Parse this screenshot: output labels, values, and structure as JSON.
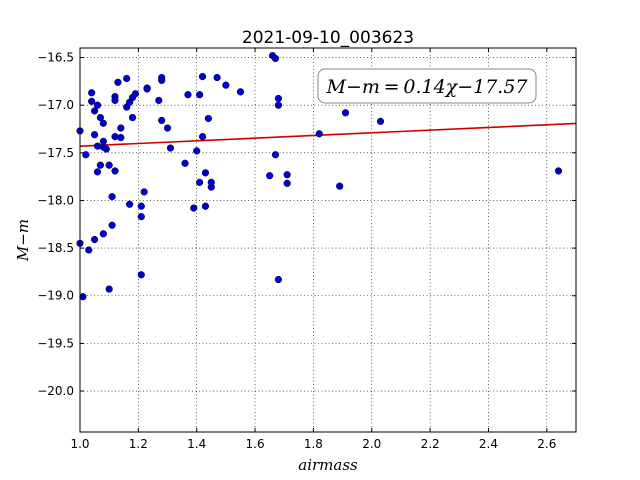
{
  "chart_data": {
    "type": "scatter",
    "title": "2021-09-10_003623",
    "xlabel": "airmass",
    "ylabel": "M−m",
    "xlim": [
      1.0,
      2.7
    ],
    "ylim": [
      -16.4,
      -20.43
    ],
    "y_inverted": true,
    "grid": true,
    "xticks": [
      1.0,
      1.2,
      1.4,
      1.6,
      1.8,
      2.0,
      2.2,
      2.4,
      2.6
    ],
    "xtick_labels": [
      "1.0",
      "1.2",
      "1.4",
      "1.6",
      "1.8",
      "2.0",
      "2.2",
      "2.4",
      "2.6"
    ],
    "yticks": [
      -16.5,
      -17.0,
      -17.5,
      -18.0,
      -18.5,
      -19.0,
      -19.5,
      -20.0
    ],
    "ytick_labels": [
      "−16.5",
      "−17.0",
      "−17.5",
      "−18.0",
      "−18.5",
      "−19.0",
      "−19.5",
      "−20.0"
    ],
    "fit": {
      "slope": 0.14,
      "intercept": -17.57,
      "color": "#cc0000"
    },
    "annotation": "M−m = 0.14χ−17.57",
    "point_color": "#0000cc",
    "points": [
      [
        1.0,
        -17.27
      ],
      [
        1.0,
        -18.45
      ],
      [
        1.01,
        -19.01
      ],
      [
        1.02,
        -17.52
      ],
      [
        1.03,
        -18.52
      ],
      [
        1.04,
        -16.96
      ],
      [
        1.04,
        -16.87
      ],
      [
        1.05,
        -17.06
      ],
      [
        1.05,
        -17.31
      ],
      [
        1.05,
        -18.41
      ],
      [
        1.06,
        -17.0
      ],
      [
        1.06,
        -17.43
      ],
      [
        1.06,
        -17.7
      ],
      [
        1.07,
        -17.13
      ],
      [
        1.07,
        -17.63
      ],
      [
        1.08,
        -17.44
      ],
      [
        1.08,
        -17.38
      ],
      [
        1.08,
        -17.19
      ],
      [
        1.08,
        -18.35
      ],
      [
        1.09,
        -17.46
      ],
      [
        1.1,
        -17.63
      ],
      [
        1.1,
        -18.93
      ],
      [
        1.11,
        -18.26
      ],
      [
        1.11,
        -17.96
      ],
      [
        1.12,
        -16.91
      ],
      [
        1.12,
        -16.95
      ],
      [
        1.12,
        -17.33
      ],
      [
        1.12,
        -17.69
      ],
      [
        1.13,
        -16.76
      ],
      [
        1.14,
        -17.24
      ],
      [
        1.14,
        -17.34
      ],
      [
        1.16,
        -16.72
      ],
      [
        1.16,
        -17.02
      ],
      [
        1.17,
        -18.04
      ],
      [
        1.17,
        -16.97
      ],
      [
        1.18,
        -16.92
      ],
      [
        1.18,
        -17.13
      ],
      [
        1.19,
        -16.88
      ],
      [
        1.21,
        -18.06
      ],
      [
        1.21,
        -18.17
      ],
      [
        1.21,
        -18.78
      ],
      [
        1.22,
        -17.91
      ],
      [
        1.23,
        -16.83
      ],
      [
        1.23,
        -16.82
      ],
      [
        1.27,
        -16.95
      ],
      [
        1.28,
        -16.74
      ],
      [
        1.28,
        -16.71
      ],
      [
        1.28,
        -17.16
      ],
      [
        1.3,
        -17.24
      ],
      [
        1.31,
        -17.45
      ],
      [
        1.36,
        -17.61
      ],
      [
        1.37,
        -16.89
      ],
      [
        1.39,
        -18.08
      ],
      [
        1.4,
        -17.48
      ],
      [
        1.41,
        -16.89
      ],
      [
        1.41,
        -17.81
      ],
      [
        1.42,
        -16.7
      ],
      [
        1.42,
        -17.33
      ],
      [
        1.43,
        -17.71
      ],
      [
        1.43,
        -18.06
      ],
      [
        1.44,
        -17.14
      ],
      [
        1.45,
        -17.86
      ],
      [
        1.45,
        -17.81
      ],
      [
        1.47,
        -16.71
      ],
      [
        1.5,
        -16.79
      ],
      [
        1.55,
        -16.86
      ],
      [
        1.65,
        -17.74
      ],
      [
        1.66,
        -16.48
      ],
      [
        1.67,
        -16.51
      ],
      [
        1.67,
        -17.52
      ],
      [
        1.68,
        -18.83
      ],
      [
        1.68,
        -16.93
      ],
      [
        1.68,
        -17.0
      ],
      [
        1.71,
        -17.73
      ],
      [
        1.71,
        -17.82
      ],
      [
        1.82,
        -17.3
      ],
      [
        1.89,
        -17.85
      ],
      [
        1.91,
        -17.08
      ],
      [
        2.03,
        -17.17
      ],
      [
        2.64,
        -17.69
      ]
    ]
  }
}
